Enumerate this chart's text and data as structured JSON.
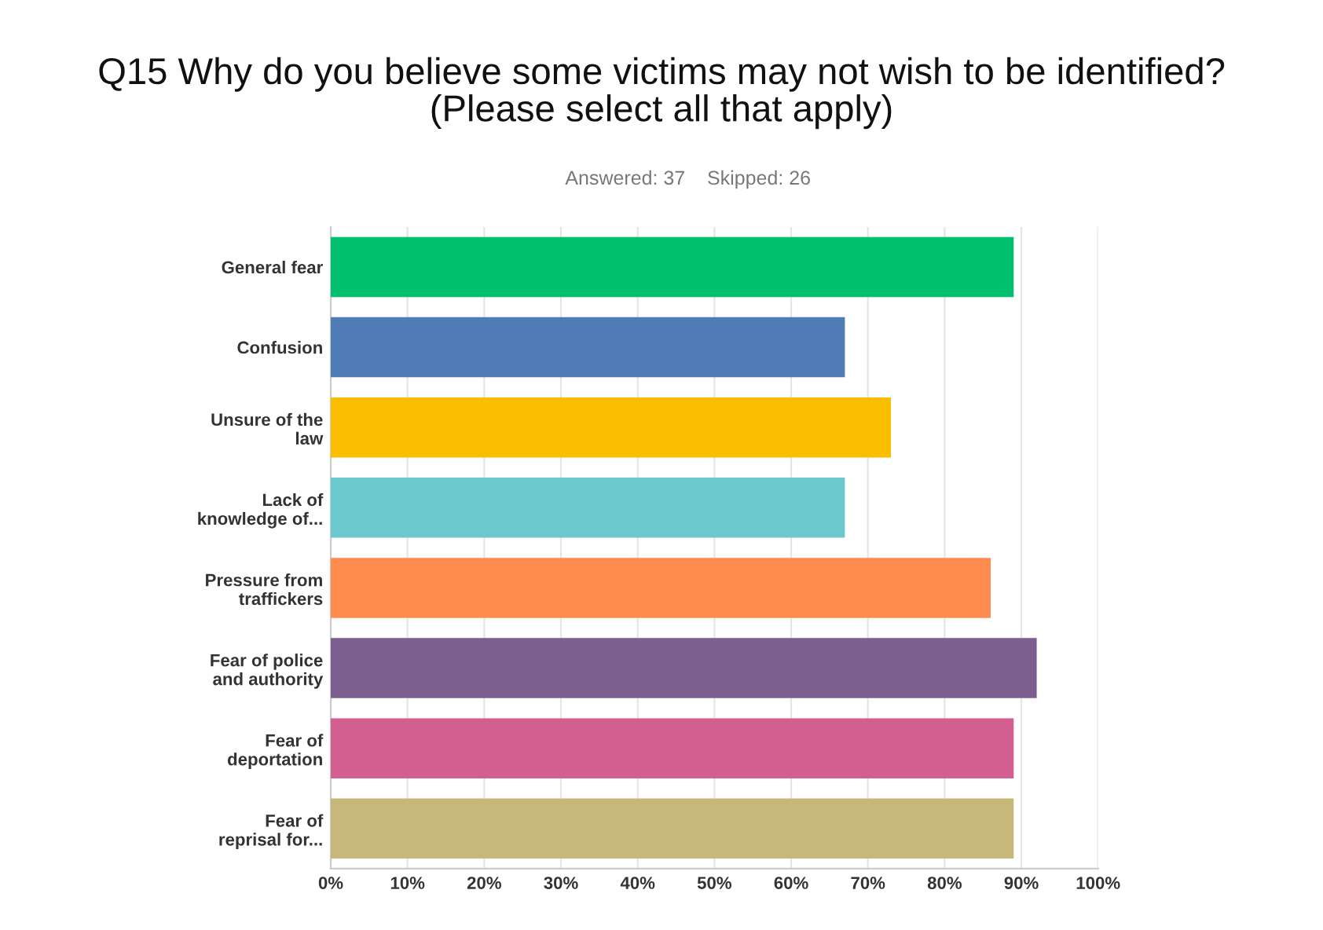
{
  "chart_data": {
    "type": "bar",
    "orientation": "horizontal",
    "title": "Q15 Why do you believe some victims may not wish to be identified?\n(Please select all that apply)",
    "subtitle": "Answered: 37    Skipped: 26",
    "categories": [
      "General fear",
      "Confusion",
      "Unsure of the\nlaw",
      "Lack of\nknowledge of...",
      "Pressure from\ntraffickers",
      "Fear of police\nand authority",
      "Fear of\ndeportation",
      "Fear of\nreprisal for..."
    ],
    "values": [
      89,
      67,
      73,
      67,
      86,
      92,
      89,
      89
    ],
    "colors": [
      "#00bf6f",
      "#507cb6",
      "#f9be00",
      "#6bc8cd",
      "#ff8b4f",
      "#7d5e90",
      "#d25f90",
      "#c7b879"
    ],
    "xlim": [
      0,
      100
    ],
    "xticks": [
      {
        "value": 0,
        "label": "0%"
      },
      {
        "value": 10,
        "label": "10%"
      },
      {
        "value": 20,
        "label": "20%"
      },
      {
        "value": 30,
        "label": "30%"
      },
      {
        "value": 40,
        "label": "40%"
      },
      {
        "value": 50,
        "label": "50%"
      },
      {
        "value": 60,
        "label": "60%"
      },
      {
        "value": 70,
        "label": "70%"
      },
      {
        "value": 80,
        "label": "80%"
      },
      {
        "value": 90,
        "label": "90%"
      },
      {
        "value": 100,
        "label": "100%"
      }
    ],
    "grid": "x"
  }
}
